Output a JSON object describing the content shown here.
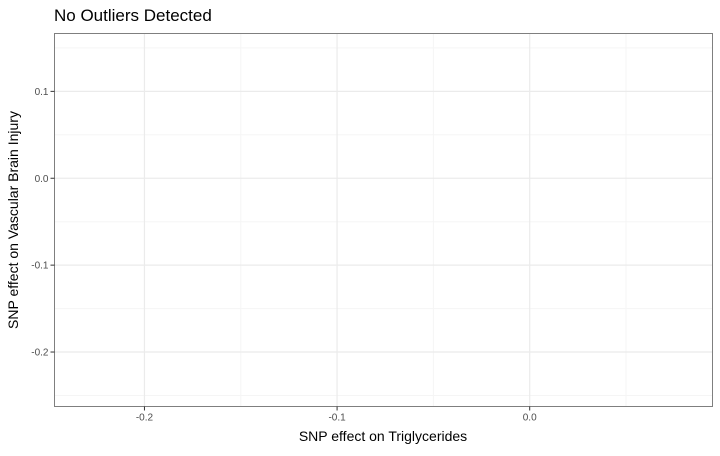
{
  "chart_data": {
    "type": "scatter",
    "title": "No Outliers Detected",
    "xlabel": "SNP effect on Triglycerides",
    "ylabel": "SNP effect on Vascular Brain Injury",
    "xlim": [
      -0.2467,
      0.0949
    ],
    "ylim": [
      -0.2627,
      0.1666
    ],
    "x_ticks": [
      -0.2,
      -0.1,
      0.0
    ],
    "x_tick_labels": [
      "-0.2",
      "-0.1",
      "0.0"
    ],
    "y_ticks": [
      0.1,
      0.0,
      -0.1,
      -0.2
    ],
    "y_tick_labels": [
      "0.1",
      "0.0",
      "-0.1",
      "-0.2"
    ],
    "grid": true,
    "points": []
  },
  "colors": {
    "background": "#ffffff",
    "panel_border": "#7f7f7f",
    "grid_major": "#ebebeb",
    "grid_minor": "#f5f5f5",
    "tick": "#333333",
    "text": "#000000",
    "tick_label": "#4d4d4d"
  }
}
